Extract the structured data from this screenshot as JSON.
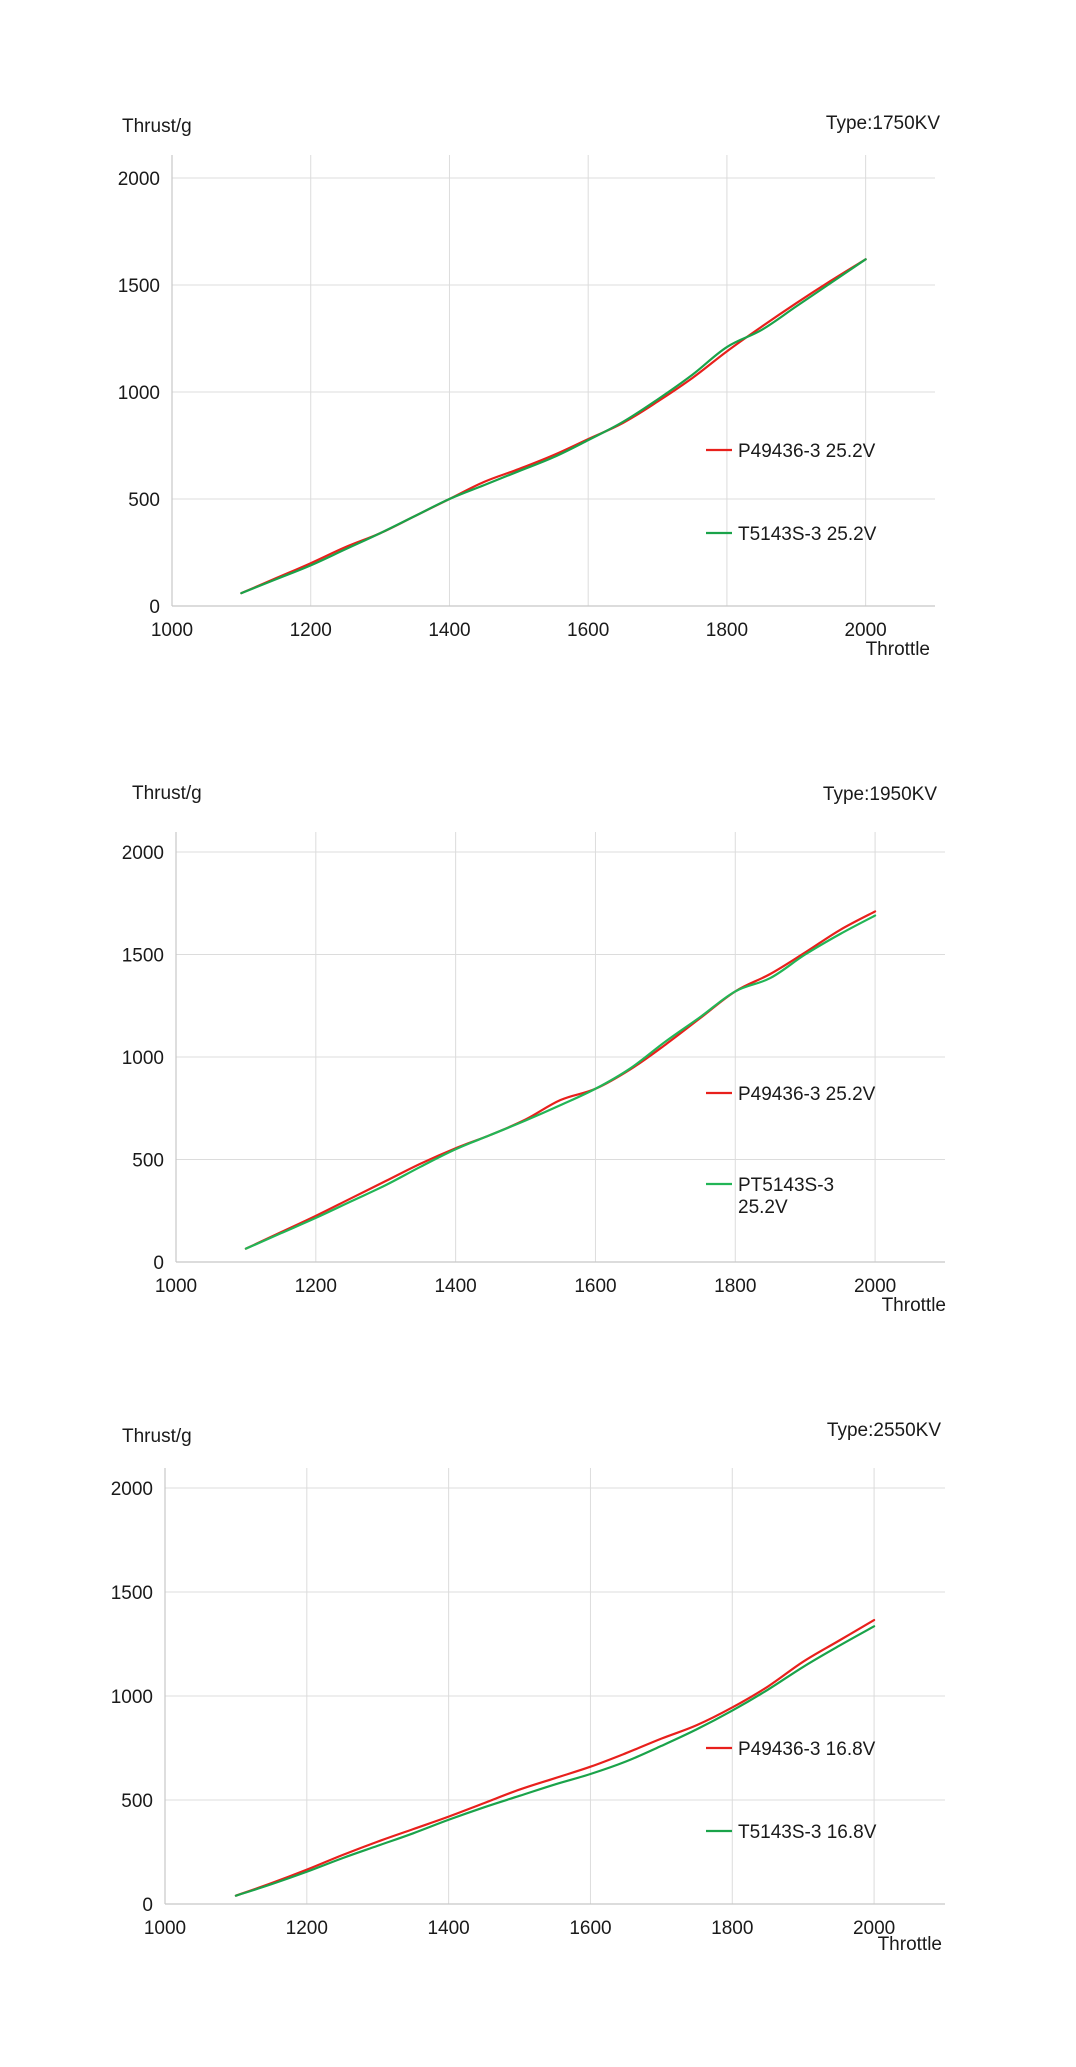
{
  "chart_data": [
    {
      "type": "line",
      "title": "Type:1750KV",
      "ylabel": "Thrust/g",
      "xlabel": "Throttle",
      "xlim": [
        1000,
        2100
      ],
      "ylim": [
        0,
        2100
      ],
      "x_ticks": [
        "1000",
        "1200",
        "1400",
        "1600",
        "1800",
        "2000"
      ],
      "y_ticks": [
        "0",
        "500",
        "1000",
        "1500",
        "2000"
      ],
      "grid": true,
      "legend": "right",
      "series": [
        {
          "name": "P49436-3 25.2V",
          "color": "#e8201c",
          "x": [
            1100,
            1150,
            1200,
            1250,
            1300,
            1350,
            1400,
            1450,
            1500,
            1550,
            1600,
            1650,
            1700,
            1750,
            1800,
            1850,
            1900,
            1950,
            2000
          ],
          "y": [
            60,
            130,
            200,
            275,
            340,
            420,
            500,
            580,
            640,
            705,
            780,
            855,
            955,
            1065,
            1190,
            1305,
            1415,
            1520,
            1620
          ]
        },
        {
          "name": "T5143S-3 25.2V",
          "color": "#1aa34a",
          "x": [
            1100,
            1150,
            1200,
            1250,
            1300,
            1350,
            1400,
            1450,
            1500,
            1550,
            1600,
            1650,
            1700,
            1750,
            1800,
            1850,
            1900,
            1950,
            2000
          ],
          "y": [
            60,
            125,
            190,
            265,
            340,
            420,
            500,
            565,
            630,
            695,
            775,
            860,
            965,
            1080,
            1210,
            1290,
            1400,
            1510,
            1620
          ]
        }
      ]
    },
    {
      "type": "line",
      "title": "Type:1950KV",
      "ylabel": "Thrust/g",
      "xlabel": "Throttle",
      "xlim": [
        1000,
        2100
      ],
      "ylim": [
        0,
        2100
      ],
      "x_ticks": [
        "1000",
        "1200",
        "1400",
        "1600",
        "1800",
        "2000"
      ],
      "y_ticks": [
        "0",
        "500",
        "1000",
        "1500",
        "2000"
      ],
      "grid": true,
      "legend": "right",
      "series": [
        {
          "name": "P49436-3 25.2V",
          "color": "#e8201c",
          "x": [
            1100,
            1150,
            1200,
            1250,
            1300,
            1350,
            1400,
            1450,
            1500,
            1550,
            1600,
            1650,
            1700,
            1750,
            1800,
            1850,
            1900,
            1950,
            2000
          ],
          "y": [
            65,
            145,
            225,
            310,
            395,
            480,
            555,
            620,
            695,
            790,
            845,
            940,
            1060,
            1190,
            1320,
            1405,
            1510,
            1620,
            1710
          ]
        },
        {
          "name": "PT5143S-3 25.2V",
          "color": "#22b556",
          "x": [
            1100,
            1150,
            1200,
            1250,
            1300,
            1350,
            1400,
            1450,
            1500,
            1550,
            1600,
            1650,
            1700,
            1750,
            1800,
            1850,
            1900,
            1950,
            2000
          ],
          "y": [
            65,
            140,
            215,
            295,
            375,
            465,
            550,
            620,
            690,
            765,
            845,
            945,
            1075,
            1195,
            1320,
            1385,
            1500,
            1600,
            1690
          ]
        }
      ]
    },
    {
      "type": "line",
      "title": "Type:2550KV",
      "ylabel": "Thrust/g",
      "xlabel": "Throttle",
      "xlim": [
        1000,
        2100
      ],
      "ylim": [
        0,
        2100
      ],
      "x_ticks": [
        "1000",
        "1200",
        "1400",
        "1600",
        "1800",
        "2000"
      ],
      "y_ticks": [
        "0",
        "500",
        "1000",
        "1500",
        "2000"
      ],
      "grid": true,
      "legend": "right",
      "series": [
        {
          "name": "P49436-3 16.8V",
          "color": "#e8201c",
          "x": [
            1100,
            1150,
            1200,
            1250,
            1300,
            1350,
            1400,
            1450,
            1500,
            1550,
            1600,
            1650,
            1700,
            1750,
            1800,
            1850,
            1900,
            1950,
            2000
          ],
          "y": [
            40,
            100,
            165,
            235,
            300,
            360,
            420,
            485,
            550,
            605,
            660,
            725,
            795,
            860,
            945,
            1045,
            1165,
            1265,
            1365
          ]
        },
        {
          "name": "T5143S-3 16.8V",
          "color": "#1aa34a",
          "x": [
            1100,
            1150,
            1200,
            1250,
            1300,
            1350,
            1400,
            1450,
            1500,
            1550,
            1600,
            1650,
            1700,
            1750,
            1800,
            1850,
            1900,
            1950,
            2000
          ],
          "y": [
            40,
            95,
            155,
            220,
            280,
            340,
            405,
            465,
            520,
            575,
            625,
            685,
            760,
            840,
            930,
            1030,
            1140,
            1240,
            1335
          ]
        }
      ]
    }
  ]
}
